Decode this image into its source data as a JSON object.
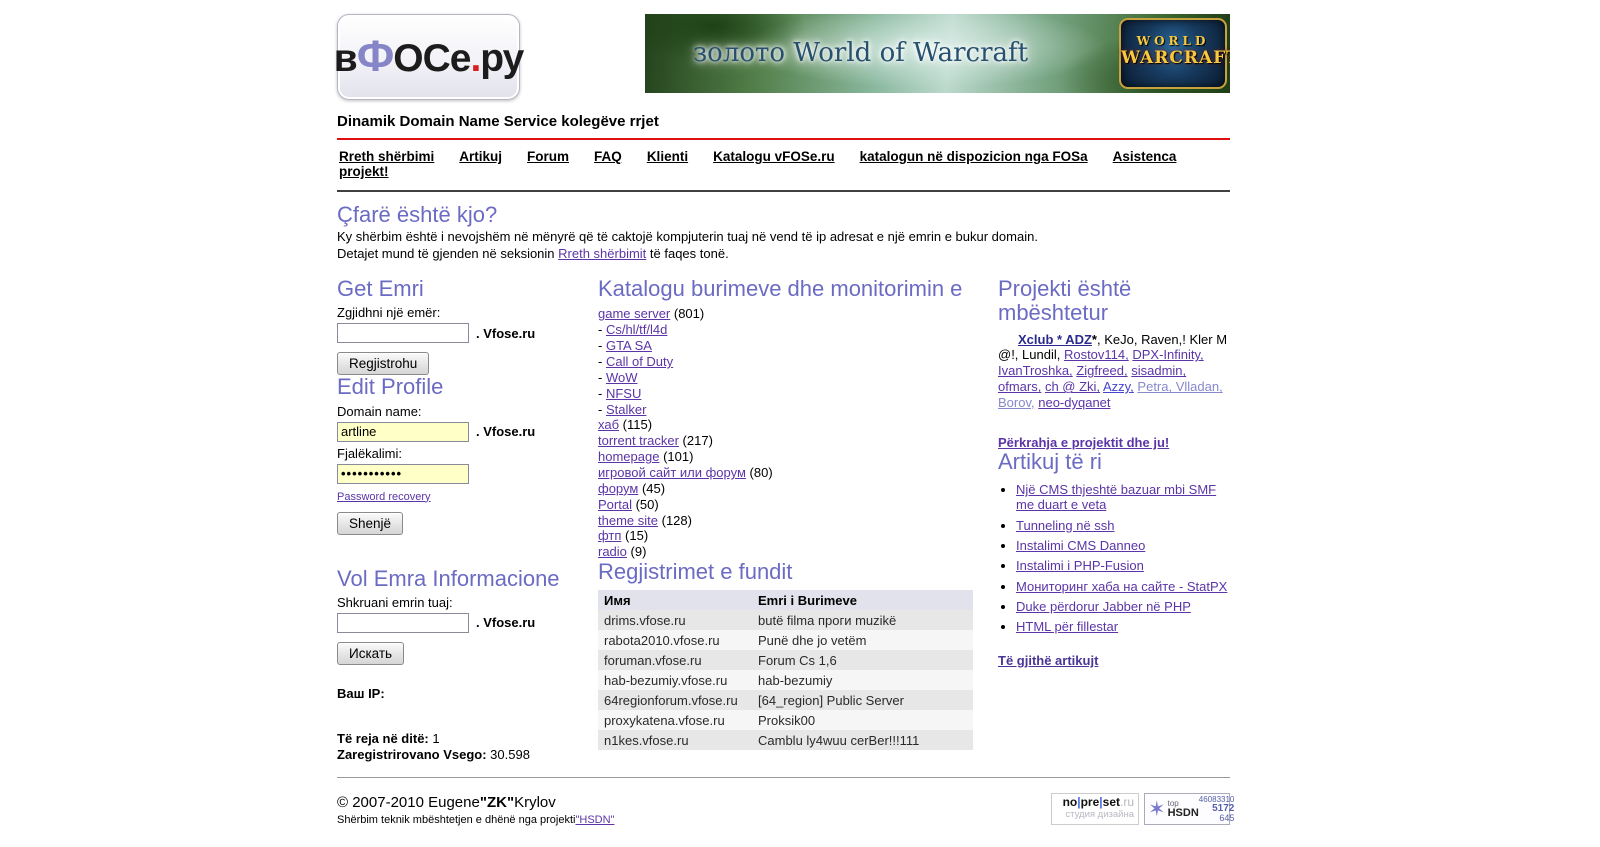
{
  "colors": {
    "heading_accent": "#6b6bc4",
    "divider_red": "#e01010",
    "link_purple": "#5b35a7",
    "input_yellow": "#ffffc8"
  },
  "header": {
    "logo": {
      "p1": "в",
      "p2": "Ф",
      "p3": "ОСе",
      "dot": ".",
      "p4": "ру"
    },
    "tagline": "Dinamik Domain Name Service kolegëve rrjet",
    "banner": {
      "text": "золото World of Warcraft",
      "logo_line1": "WORLD",
      "logo_line2": "WARCRAFT"
    }
  },
  "nav": {
    "items": [
      "Rreth shërbimi",
      "Artikuj",
      "Forum",
      "FAQ",
      "Klienti",
      "Katalogu vFOSe.ru",
      "katalogun në dispozicion nga FOSa",
      "Asistenca projekt!"
    ]
  },
  "intro": {
    "title": "Çfarë është kjo?",
    "line1": "Ky shërbim është i nevojshëm në mënyrë që të caktojë kompjuterin tuaj në vend të ip adresat e një emrin e bukur domain.",
    "line2_before": "Detajet mund të gjenden në seksionin ",
    "line2_link": "Rreth shërbimit",
    "line2_after": " të faqes tonë."
  },
  "get_name": {
    "title": "Get Emri",
    "label": "Zgjidhni një emër:",
    "suffix": ". Vfose.ru",
    "button": "Regjistrohu",
    "input_value": ""
  },
  "edit_profile": {
    "title": "Edit Profile",
    "domain_label": "Domain name:",
    "domain_value": "artline",
    "suffix": ". Vfose.ru",
    "password_label": "Fjalëkalimi:",
    "password_value": "•••••••••••",
    "recovery_link": "Password recovery",
    "button": "Shenjë"
  },
  "whois": {
    "title": "Vol Emra Informacione",
    "label": "Shkruani emrin tuaj:",
    "suffix": ". Vfose.ru",
    "button": "Искать",
    "input_value": ""
  },
  "stats": {
    "ip_label": "Ваш IP:",
    "new_label": "Të reja në ditë:",
    "new_value": " 1",
    "total_label": "Zaregistrirovano Vsego:",
    "total_value": " 30.598"
  },
  "catalog": {
    "title": "Katalogu burimeve dhe monitorimin e",
    "items": [
      {
        "label": "game server",
        "count": "(801)"
      },
      {
        "label": "Cs/hl/tf/l4d",
        "sub": true
      },
      {
        "label": "GTA SA",
        "sub": true
      },
      {
        "label": "Call of Duty",
        "sub": true
      },
      {
        "label": "WoW",
        "sub": true
      },
      {
        "label": "NFSU",
        "sub": true
      },
      {
        "label": "Stalker",
        "sub": true
      },
      {
        "label": "хаб",
        "count": "(115)"
      },
      {
        "label": "torrent tracker",
        "count": "(217)"
      },
      {
        "label": "homepage",
        "count": "(101)"
      },
      {
        "label": "игровой сайт или форум",
        "count": "(80)"
      },
      {
        "label": "форум",
        "count": "(45)"
      },
      {
        "label": "Portal",
        "count": "(50)"
      },
      {
        "label": "theme site",
        "count": "(128)"
      },
      {
        "label": "фтп",
        "count": "(15)"
      },
      {
        "label": "radio",
        "count": "(9)"
      }
    ]
  },
  "recent": {
    "title": "Regjistrimet e fundit",
    "columns": [
      "Имя",
      "Emri i Burimeve"
    ],
    "rows": [
      [
        "drims.vfose.ru",
        "butë filma проги muzikë"
      ],
      [
        "rabota2010.vfose.ru",
        "Punë dhe jo vetëm"
      ],
      [
        "foruman.vfose.ru",
        "Forum Cs 1,6"
      ],
      [
        "hab-bezumiy.vfose.ru",
        "hab-bezumiy"
      ],
      [
        "64regionforum.vfose.ru",
        "[64_region] Public Server"
      ],
      [
        "proxykatena.vfose.ru",
        "Proksik00"
      ],
      [
        "n1kes.vfose.ru",
        "Camblu ly4wuu cerBer!!!111"
      ]
    ]
  },
  "supported": {
    "title": "Projekti është mbështetur",
    "segments": [
      {
        "t": "Xclub * ADZ",
        "s": "boldlink"
      },
      {
        "t": "*",
        "s": "boldplain"
      },
      {
        "t": ", KeJo, Raven,! Kler M @!, Lundil, ",
        "s": "plain"
      },
      {
        "t": "Rostov114,",
        "s": "link"
      },
      {
        "t": " ",
        "s": "plain"
      },
      {
        "t": "DPX-Infinity,",
        "s": "link"
      },
      {
        "t": " ",
        "s": "plain"
      },
      {
        "t": "IvanTroshka,",
        "s": "link"
      },
      {
        "t": " ",
        "s": "plain"
      },
      {
        "t": "Zigfreed,",
        "s": "link"
      },
      {
        "t": " ",
        "s": "plain"
      },
      {
        "t": "sisadmin,",
        "s": "link"
      },
      {
        "t": " ",
        "s": "plain"
      },
      {
        "t": "ofmars,",
        "s": "link"
      },
      {
        "t": " ",
        "s": "plain"
      },
      {
        "t": "ch @ Zki,",
        "s": "link"
      },
      {
        "t": " ",
        "s": "plain"
      },
      {
        "t": "Azzy,",
        "s": "linkblue"
      },
      {
        "t": " ",
        "s": "plain"
      },
      {
        "t": "Petra, Vlladan, Borov,",
        "s": "linklight"
      },
      {
        "t": " ",
        "s": "plain"
      },
      {
        "t": "neo-dyqanet",
        "s": "link"
      }
    ],
    "support_link": "Përkrahja e projektit dhe ju!"
  },
  "articles": {
    "title": "Artikuj të ri",
    "items": [
      "Një CMS thjeshtë bazuar mbi SMF me duart e veta",
      "Tunneling në ssh",
      "Instalimi CMS Danneo",
      "Instalimi i PHP-Fusion",
      "Мониторинг хаба на сайте - StatPX",
      "Duke përdorur Jabber në PHP",
      "HTML për fillestar"
    ],
    "all_link": "Të gjithë artikujt"
  },
  "footer": {
    "copyright_pre": "© 2007-2010 Eugene",
    "copyright_bold": "\"ZK\"",
    "copyright_post": "Krylov",
    "support_text": "Shërbim teknik mbështetjen e dhënë nga projekti",
    "support_link": "\"HSDN\"",
    "badge_nopreset": {
      "p1": "no",
      "pipe": "|",
      "p2": "pre",
      "p3": "set",
      "tld": ".ru",
      "subtitle": "студия дизайна"
    },
    "badge_hsdn": {
      "star": "✶",
      "top": "top",
      "name": "HSDN",
      "num1": "46083310",
      "num2": "5172",
      "num3": "645"
    }
  }
}
